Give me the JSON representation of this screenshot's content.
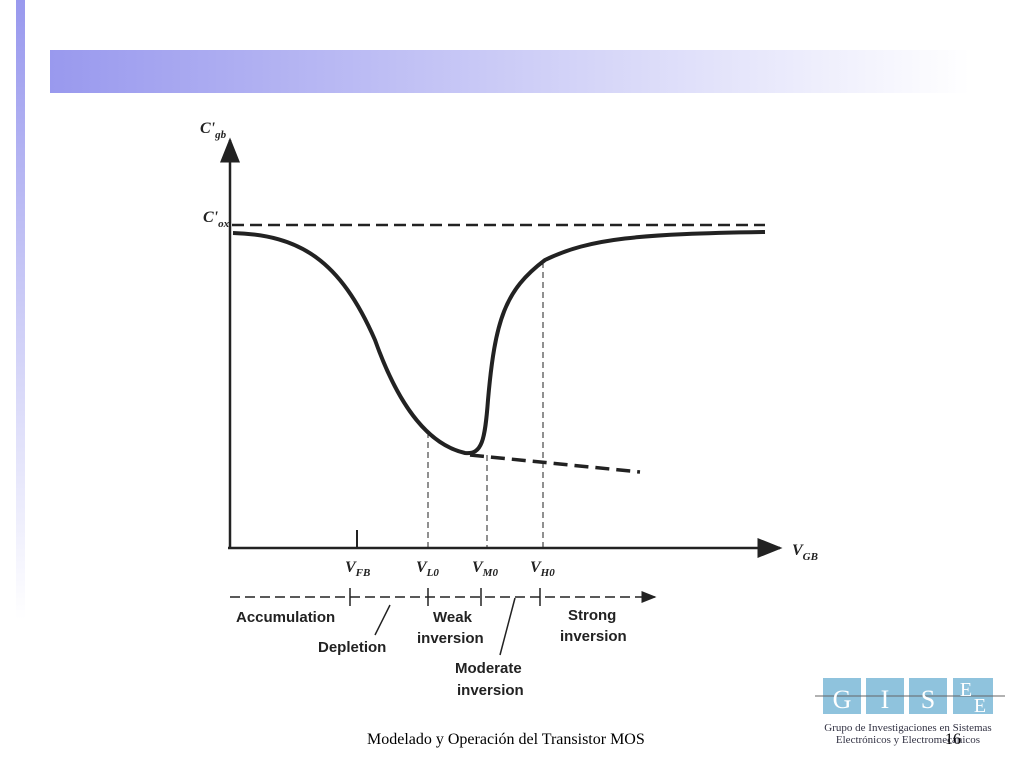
{
  "diagram": {
    "y_axis_label": {
      "main": "C'",
      "sub": "gb"
    },
    "cox_label": {
      "main": "C'",
      "sub": "ox"
    },
    "x_axis_label": {
      "main": "V",
      "sub": "GB"
    },
    "ticks": [
      {
        "main": "V",
        "sub": "FB"
      },
      {
        "main": "V",
        "sub": "L0"
      },
      {
        "main": "V",
        "sub": "M0"
      },
      {
        "main": "V",
        "sub": "H0"
      }
    ],
    "regions": {
      "accumulation": "Accumulation",
      "depletion": "Depletion",
      "weak": [
        "Weak",
        "inversion"
      ],
      "moderate": [
        "Moderate",
        "inversion"
      ],
      "strong": [
        "Strong",
        "inversion"
      ]
    }
  },
  "footer": {
    "title": "Modelado y Operación del Transistor MOS",
    "page": "16"
  },
  "logo": {
    "letters": [
      "G",
      "I",
      "S",
      "E",
      "E"
    ],
    "caption": [
      "Grupo de Investigaciones en Sistemas",
      "Electrónicos y Electromecánicos"
    ]
  }
}
